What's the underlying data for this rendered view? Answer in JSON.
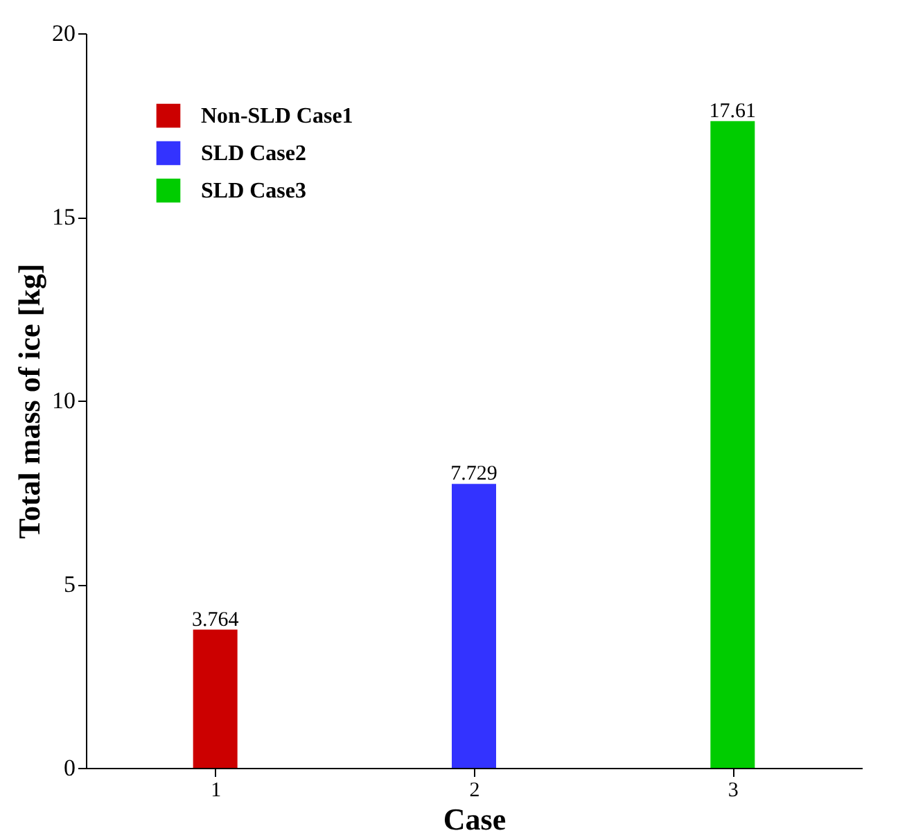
{
  "chart_data": {
    "type": "bar",
    "xlabel": "Case",
    "ylabel": "Total mass of ice [kg]",
    "series": [
      {
        "name": "Non-SLD Case1",
        "color": "#cc0000",
        "x": [
          1
        ],
        "values": [
          3.764
        ]
      },
      {
        "name": "SLD Case2",
        "color": "#3333ff",
        "x": [
          2
        ],
        "values": [
          7.729
        ]
      },
      {
        "name": "SLD Case3",
        "color": "#00cc00",
        "x": [
          3
        ],
        "values": [
          17.61
        ]
      }
    ],
    "xlim": [
      0.5,
      3.5
    ],
    "xticks": [
      1,
      2,
      3
    ],
    "ylim": [
      0,
      20
    ],
    "yticks": [
      0,
      5,
      10,
      15,
      20
    ],
    "data_labels": true,
    "grid": false,
    "legend": "top left"
  }
}
